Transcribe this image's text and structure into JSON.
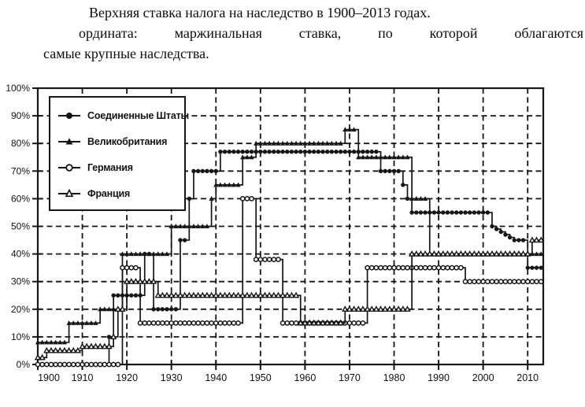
{
  "title": {
    "line1": "Верхняя ставка налога на наследство в 1900–2013 годах.",
    "line2": "ордината: маржинальная ставка, по которой облагаются",
    "line3": "самые крупные наследства."
  },
  "colors": {
    "ink": "#161616",
    "background": "#ffffff"
  },
  "chart_data": {
    "type": "line",
    "title": "Верхняя ставка налога на наследство в 1900–2013 годах",
    "xlabel": "",
    "ylabel": "маржинальная ставка (%)",
    "xlim": [
      1900,
      2013.5
    ],
    "ylim": [
      0,
      100
    ],
    "grid": true,
    "legend_position": "top-left",
    "x_ticks": [
      1900,
      1910,
      1920,
      1930,
      1940,
      1950,
      1960,
      1970,
      1980,
      1990,
      2000,
      2010
    ],
    "y_tick_labels": [
      "0%",
      "10%",
      "20%",
      "30%",
      "40%",
      "50%",
      "60%",
      "70%",
      "80%",
      "90%",
      "100%"
    ],
    "series": [
      {
        "key": "united-states",
        "name": "Соединенные Штаты",
        "marker": "filled-circle",
        "steps": [
          {
            "from": 1900,
            "to": 1915,
            "rate": 0
          },
          {
            "from": 1916,
            "to": 1916,
            "rate": 10
          },
          {
            "from": 1917,
            "to": 1923,
            "rate": 25
          },
          {
            "from": 1924,
            "to": 1925,
            "rate": 40
          },
          {
            "from": 1926,
            "to": 1931,
            "rate": 20
          },
          {
            "from": 1932,
            "to": 1933,
            "rate": 45
          },
          {
            "from": 1934,
            "to": 1934,
            "rate": 60
          },
          {
            "from": 1935,
            "to": 1940,
            "rate": 70
          },
          {
            "from": 1941,
            "to": 1976,
            "rate": 77
          },
          {
            "from": 1977,
            "to": 1981,
            "rate": 70
          },
          {
            "from": 1982,
            "to": 1982,
            "rate": 65
          },
          {
            "from": 1983,
            "to": 1983,
            "rate": 60
          },
          {
            "from": 1984,
            "to": 2001,
            "rate": 55
          },
          {
            "from": 2002,
            "to": 2002,
            "rate": 50
          },
          {
            "from": 2003,
            "to": 2003,
            "rate": 49
          },
          {
            "from": 2004,
            "to": 2004,
            "rate": 48
          },
          {
            "from": 2005,
            "to": 2005,
            "rate": 47
          },
          {
            "from": 2006,
            "to": 2006,
            "rate": 46
          },
          {
            "from": 2007,
            "to": 2009,
            "rate": 45
          },
          {
            "from": 2010,
            "to": 2013,
            "rate": 35
          }
        ]
      },
      {
        "key": "great-britain",
        "name": "Великобритания",
        "marker": "filled-triangle",
        "steps": [
          {
            "from": 1900,
            "to": 1906,
            "rate": 8
          },
          {
            "from": 1907,
            "to": 1913,
            "rate": 15
          },
          {
            "from": 1914,
            "to": 1918,
            "rate": 20
          },
          {
            "from": 1919,
            "to": 1929,
            "rate": 40
          },
          {
            "from": 1930,
            "to": 1938,
            "rate": 50
          },
          {
            "from": 1939,
            "to": 1939,
            "rate": 60
          },
          {
            "from": 1940,
            "to": 1945,
            "rate": 65
          },
          {
            "from": 1946,
            "to": 1948,
            "rate": 75
          },
          {
            "from": 1949,
            "to": 1968,
            "rate": 80
          },
          {
            "from": 1969,
            "to": 1971,
            "rate": 85
          },
          {
            "from": 1972,
            "to": 1983,
            "rate": 75
          },
          {
            "from": 1984,
            "to": 1987,
            "rate": 60
          },
          {
            "from": 1988,
            "to": 2013,
            "rate": 40
          }
        ]
      },
      {
        "key": "germany",
        "name": "Германия",
        "marker": "open-circle",
        "steps": [
          {
            "from": 1900,
            "to": 1918,
            "rate": 0
          },
          {
            "from": 1919,
            "to": 1922,
            "rate": 35
          },
          {
            "from": 1923,
            "to": 1945,
            "rate": 15
          },
          {
            "from": 1946,
            "to": 1948,
            "rate": 60
          },
          {
            "from": 1949,
            "to": 1954,
            "rate": 38
          },
          {
            "from": 1955,
            "to": 1973,
            "rate": 15
          },
          {
            "from": 1974,
            "to": 1995,
            "rate": 35
          },
          {
            "from": 1996,
            "to": 2013,
            "rate": 30
          }
        ]
      },
      {
        "key": "france",
        "name": "Франция",
        "marker": "open-triangle",
        "steps": [
          {
            "from": 1900,
            "to": 1901,
            "rate": 2.5
          },
          {
            "from": 1902,
            "to": 1909,
            "rate": 5
          },
          {
            "from": 1910,
            "to": 1916,
            "rate": 6.5
          },
          {
            "from": 1917,
            "to": 1917,
            "rate": 10
          },
          {
            "from": 1918,
            "to": 1919,
            "rate": 20
          },
          {
            "from": 1920,
            "to": 1926,
            "rate": 30
          },
          {
            "from": 1927,
            "to": 1958,
            "rate": 25
          },
          {
            "from": 1959,
            "to": 1968,
            "rate": 15
          },
          {
            "from": 1969,
            "to": 1983,
            "rate": 20
          },
          {
            "from": 1984,
            "to": 2010,
            "rate": 40
          },
          {
            "from": 2011,
            "to": 2013,
            "rate": 45
          }
        ]
      }
    ]
  }
}
